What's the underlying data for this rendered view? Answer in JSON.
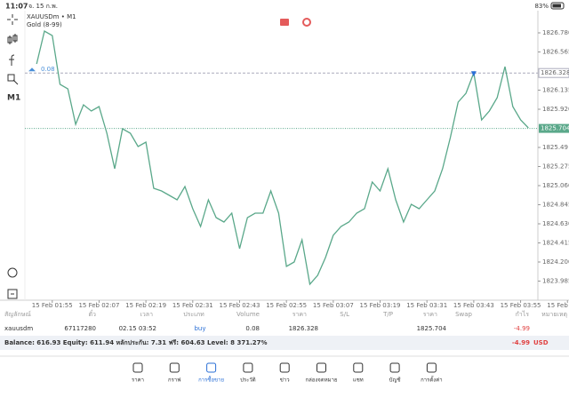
{
  "status_bar": {
    "time": "11:07",
    "date": "จ. 15 ก.พ.",
    "battery": "83%"
  },
  "toolbar": {
    "timeframe": "M1"
  },
  "chart_data": {
    "type": "line",
    "title": "XAUUSDm • M1",
    "subtitle": "Gold (8-99)",
    "color": "#5aa88a",
    "categories": [
      null,
      null,
      "15 Feb 01:55",
      null,
      null,
      null,
      null,
      null,
      "15 Feb 02:07",
      null,
      null,
      null,
      null,
      null,
      "15 Feb 02:19",
      null,
      null,
      null,
      null,
      null,
      "15 Feb 02:31",
      null,
      null,
      null,
      null,
      null,
      "15 Feb 02:43",
      null,
      null,
      null,
      null,
      null,
      "15 Feb 02:55",
      null,
      null,
      null,
      null,
      null,
      "15 Feb 03:07",
      null,
      null,
      null,
      null,
      null,
      "15 Feb 03:19",
      null,
      null,
      null,
      null,
      null,
      "15 Feb 03:31",
      null,
      null,
      null,
      null,
      null,
      "15 Feb 03:43",
      null,
      null,
      null,
      null,
      null,
      "15 Feb 03:55",
      null,
      null,
      null,
      null,
      null,
      "15 Feb 04:07"
    ],
    "values": [
      1826.43,
      1826.8,
      1826.75,
      1826.2,
      1826.15,
      1825.75,
      1825.97,
      1825.9,
      1825.95,
      1825.65,
      1825.25,
      1825.7,
      1825.65,
      1825.5,
      1825.55,
      1825.03,
      1825.0,
      1824.95,
      1824.9,
      1825.05,
      1824.8,
      1824.6,
      1824.9,
      1824.7,
      1824.65,
      1824.75,
      1824.35,
      1824.7,
      1824.75,
      1824.75,
      1825.0,
      1824.75,
      1824.15,
      1824.2,
      1824.45,
      1823.95,
      1824.05,
      1824.25,
      1824.5,
      1824.6,
      1824.65,
      1824.75,
      1824.8,
      1825.1,
      1825.0,
      1825.25,
      1824.9,
      1824.65,
      1824.85,
      1824.8,
      1824.9,
      1825.0,
      1825.25,
      1825.6,
      1826.0,
      1826.1,
      1826.33,
      1825.8,
      1825.9,
      1826.05,
      1826.4,
      1825.95,
      1825.8,
      1825.71,
      null,
      null,
      null,
      null,
      null
    ],
    "ylim": [
      1823.77,
      1827.03
    ],
    "yticks": [
      {
        "value": 1826.78,
        "label": "1826.780"
      },
      1826.565,
      1826.135,
      {
        "value": 1825.92,
        "label": "1825.920"
      },
      1825.49,
      1825.275,
      {
        "value": 1825.06,
        "label": "1825.060"
      },
      1824.845,
      {
        "value": 1824.63,
        "label": "1824.630"
      },
      1824.415,
      {
        "value": 1824.2,
        "label": "1824.200"
      },
      1823.985
    ],
    "position_price": 1826.328,
    "position_volume": 0.08,
    "bid_price": 1825.704,
    "grid": false
  },
  "table": {
    "headers": [
      "สัญลักษณ์",
      "ตั๋ว",
      "เวลา",
      "ประเภท",
      "Volume",
      "ราคา",
      "S/L",
      "T/P",
      "ราคา",
      "Swap",
      "กำไร",
      "หมายเหตุ"
    ],
    "row": {
      "symbol": "xauusdm",
      "ticket": "67117280",
      "time": "02.15 03:52",
      "type": "buy",
      "volume": "0.08",
      "price": "1826.328",
      "current_price": "1825.704",
      "profit": "-4.99"
    }
  },
  "summary": {
    "text": "Balance: 616.93 Equity: 611.94 หลักประกัน: 7.31 ฟรี: 604.63 Level: 8 371.27%",
    "profit": "-4.99",
    "currency": "USD"
  },
  "nav": {
    "items": [
      "ราคา",
      "กราฟ",
      "การซื้อขาย",
      "ประวัติ",
      "ข่าว",
      "กล่องจดหมาย",
      "แชท",
      "บัญชี",
      "การตั้งค่า"
    ],
    "active": 2
  }
}
